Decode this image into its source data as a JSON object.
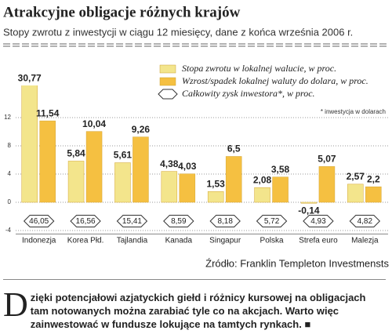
{
  "chart_data": {
    "type": "bar",
    "title": "Atrakcyjne obligacje różnych krajów",
    "subtitle": "Stopy zwrotu z inwestycji w ciągu 12 miesięcy, dane z końca września 2006 r.",
    "note": "* inwestycja w dolarach",
    "source": "Źródło: Franklin Templeton Investmensts",
    "categories": [
      "Indonezja",
      "Korea Płd.",
      "Tajlandia",
      "Kanada",
      "Singapur",
      "Polska",
      "Strefa euro",
      "Malezja"
    ],
    "series": [
      {
        "name": "Stopa zwrotu w lokalnej walucie, w proc.",
        "color": "#f3e58c",
        "values": [
          30.77,
          5.84,
          5.61,
          4.38,
          1.53,
          2.08,
          -0.14,
          2.57
        ],
        "value_labels": [
          "30,77",
          "5,84",
          "5,61",
          "4,38",
          "1,53",
          "2,08",
          "-0,14",
          "2,57"
        ]
      },
      {
        "name": "Wzrost/spadek lokalnej waluty do dolara, w proc.",
        "color": "#f5c041",
        "values": [
          11.54,
          10.04,
          9.26,
          4.03,
          6.5,
          3.58,
          5.07,
          2.2
        ],
        "value_labels": [
          "11,54",
          "10,04",
          "9,26",
          "4,03",
          "6,5",
          "3,58",
          "5,07",
          "2,2"
        ]
      },
      {
        "name": "Całkowity zysk inwestora*, w proc.",
        "color": "#ffffff",
        "values": [
          46.05,
          16.56,
          15.41,
          8.59,
          8.18,
          5.72,
          4.93,
          4.82
        ],
        "value_labels": [
          "46,05",
          "16,56",
          "15,41",
          "8,59",
          "8,18",
          "5,72",
          "4,93",
          "4,82"
        ]
      }
    ],
    "ylim": [
      -4.5,
      16.5
    ],
    "yticks": [
      -4,
      0,
      4,
      8,
      12
    ],
    "grid": true
  },
  "article": "Dzięki potencjałowi azjatyckich giełd i różnicy kursowej na obligacjach tam notowanych można zarabiać tyle co na akcjach. Warto więc zainwestować w fundusze lokujące na tamtych rynkach."
}
